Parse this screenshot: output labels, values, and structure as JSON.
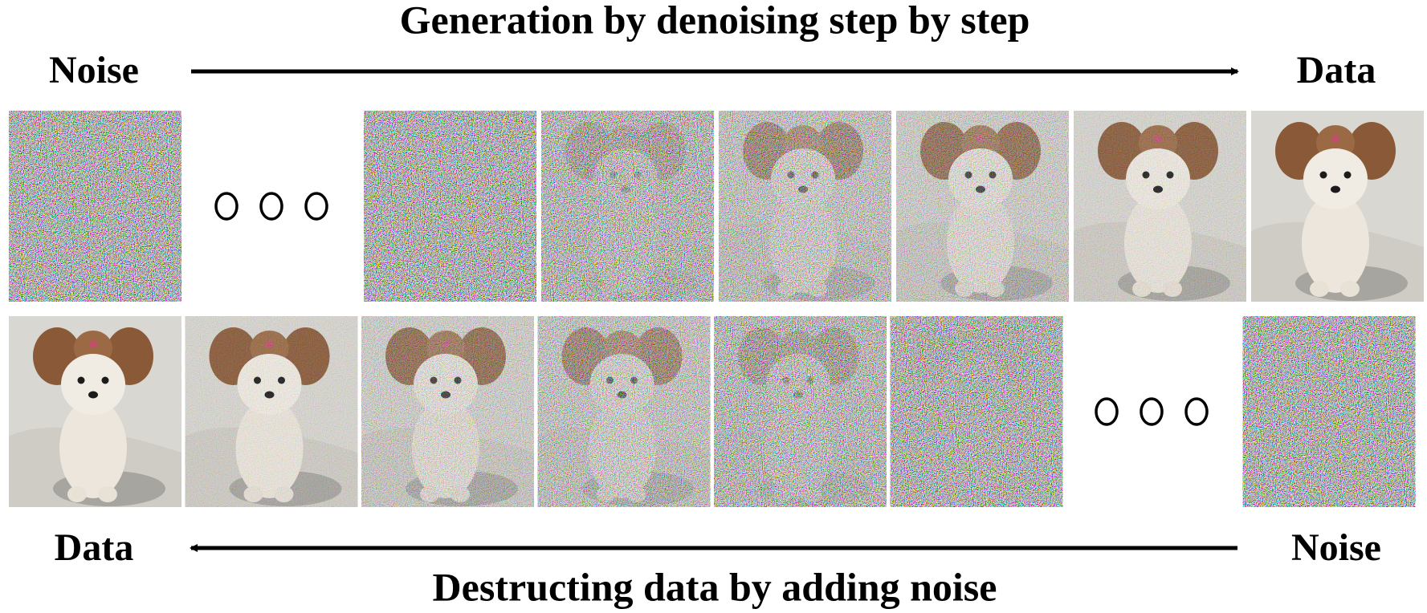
{
  "top": {
    "title": "Generation by denoising step by step",
    "left_label": "Noise",
    "right_label": "Data"
  },
  "bottom": {
    "title": "Destructing data by adding noise",
    "left_label": "Data",
    "right_label": "Noise"
  }
}
